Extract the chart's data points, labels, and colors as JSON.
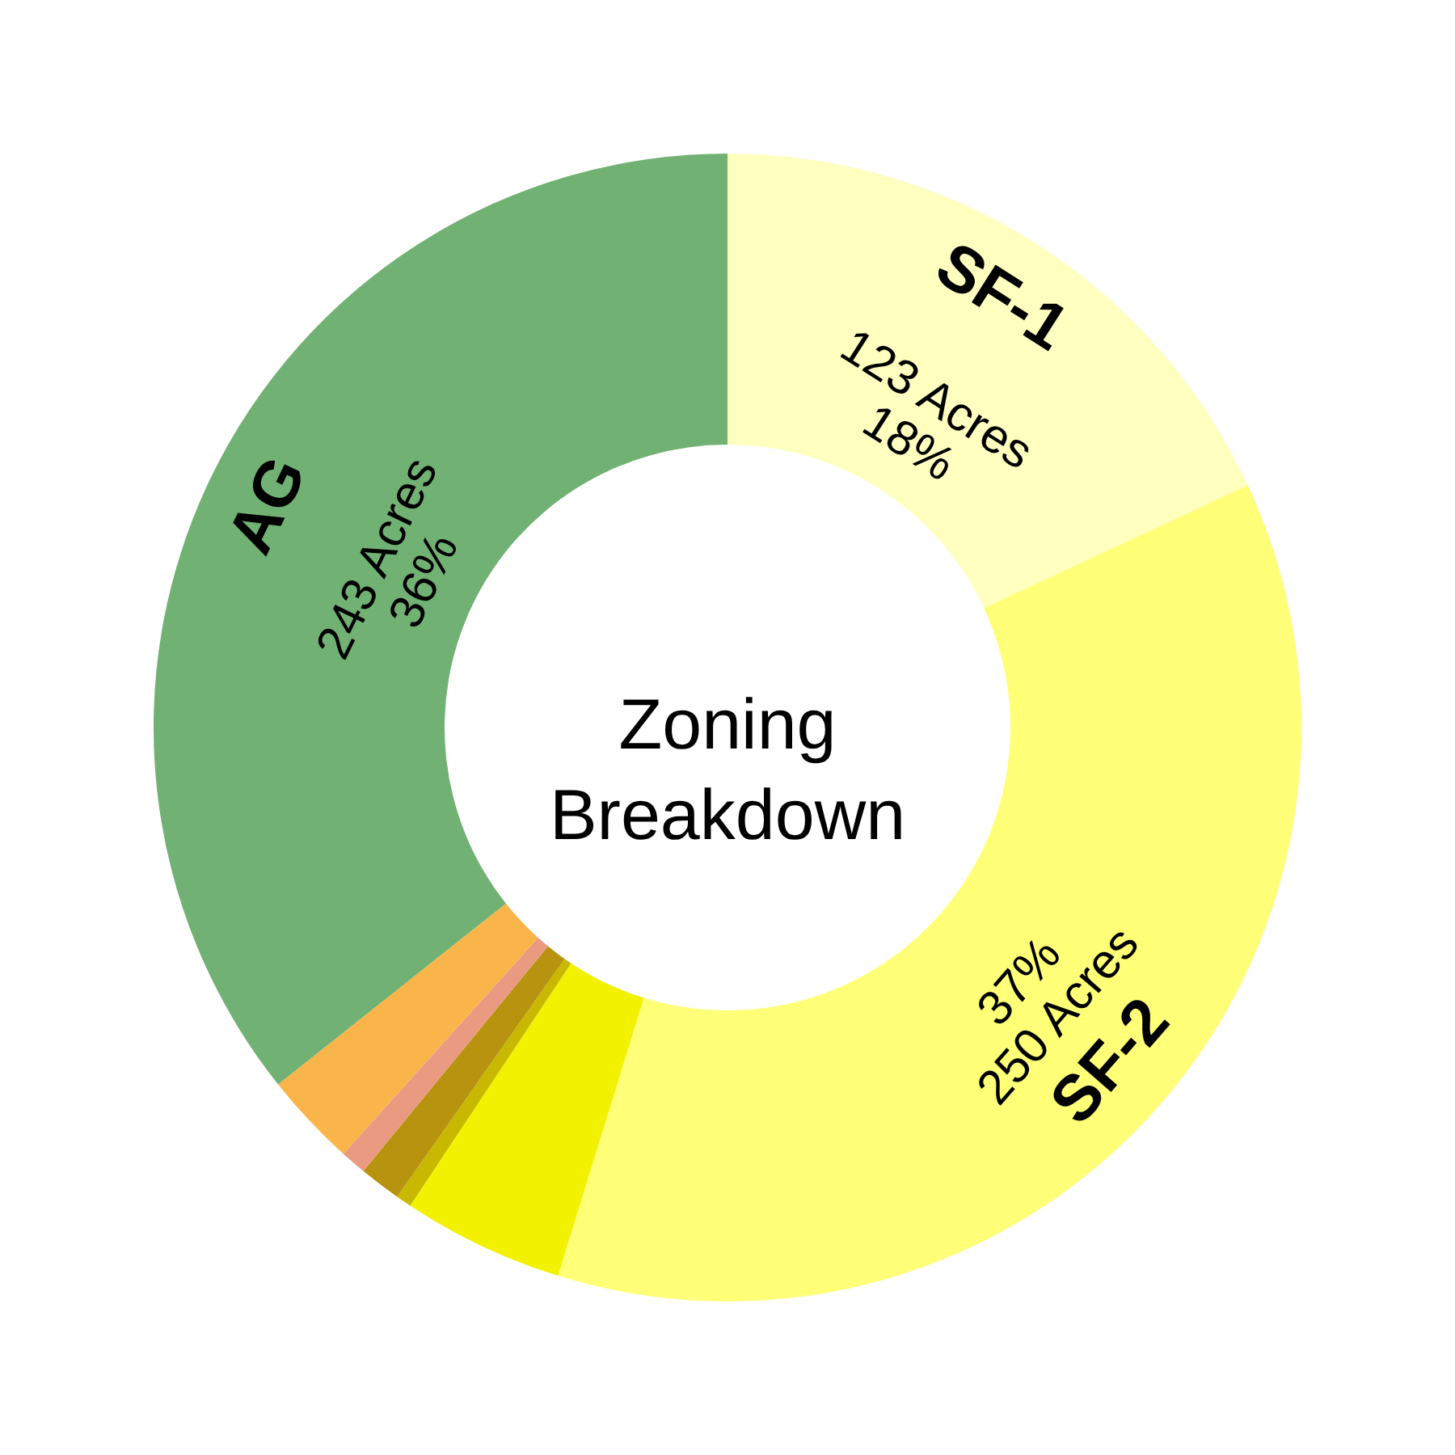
{
  "chart_data": {
    "type": "donut",
    "title": "Zoning Breakdown",
    "categories": [
      "SF-1",
      "SF-2",
      null,
      null,
      null,
      null,
      null,
      "AG"
    ],
    "values": [
      123,
      250,
      31,
      3,
      8,
      5,
      18,
      243
    ],
    "colors": [
      "#ffffc0",
      "#ffff78",
      "#f2f200",
      "#c8b800",
      "#b8930f",
      "#ea9a80",
      "#f9b54a",
      "#72b174"
    ],
    "value_labels": [
      "123 Acres\n18%",
      "37%\n250 Acres",
      null,
      null,
      null,
      null,
      null,
      "243 Acres\n36%"
    ],
    "legend": false
  }
}
